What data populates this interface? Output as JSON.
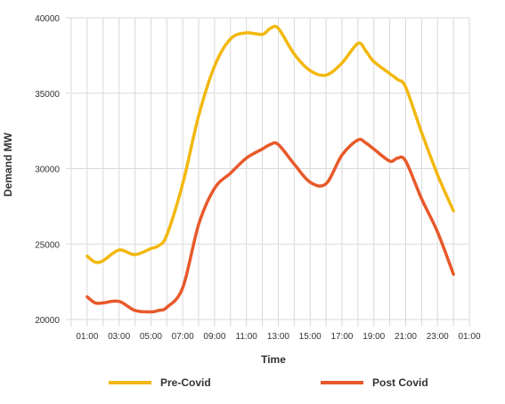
{
  "chart_data": {
    "type": "line",
    "title": "",
    "xlabel": "Time",
    "ylabel": "Demand MW",
    "grid": true,
    "legend_position": "bottom",
    "xlim": [
      0,
      25
    ],
    "ylim": [
      20000,
      40000
    ],
    "x_tick_labels": [
      "01:00",
      "03:00",
      "05:00",
      "07:00",
      "09:00",
      "11:00",
      "13:00",
      "15:00",
      "17:00",
      "19:00",
      "21:00",
      "23:00",
      "01:00"
    ],
    "y_tick_labels": [
      "20000",
      "25000",
      "30000",
      "35000",
      "40000"
    ],
    "x": [
      1,
      1.5,
      2,
      3,
      4,
      5,
      5.5,
      6,
      7,
      8,
      9,
      10,
      11,
      12,
      12.5,
      13,
      14,
      15,
      16,
      17,
      18,
      18.5,
      19,
      20,
      20.5,
      21,
      22,
      23,
      24
    ],
    "series": [
      {
        "name": "Pre-Covid",
        "color": "#f2b80e",
        "values": [
          24200,
          23800,
          23900,
          24600,
          24300,
          24700,
          24900,
          25600,
          29000,
          33500,
          36800,
          38600,
          39000,
          38900,
          39300,
          39300,
          37600,
          36500,
          36200,
          37000,
          38300,
          37800,
          37100,
          36300,
          35900,
          35400,
          32400,
          29600,
          27200
        ]
      },
      {
        "name": "Post Covid",
        "color": "#e8592a",
        "values": [
          21500,
          21100,
          21100,
          21200,
          20600,
          20500,
          20600,
          20800,
          22100,
          26300,
          28700,
          29700,
          30700,
          31300,
          31600,
          31600,
          30300,
          29100,
          29000,
          30900,
          31900,
          31700,
          31300,
          30500,
          30700,
          30500,
          28000,
          25800,
          23000
        ]
      }
    ]
  },
  "colors": {
    "grid": "#d9d9d9",
    "axis_text": "#333333",
    "background": "#ffffff"
  }
}
